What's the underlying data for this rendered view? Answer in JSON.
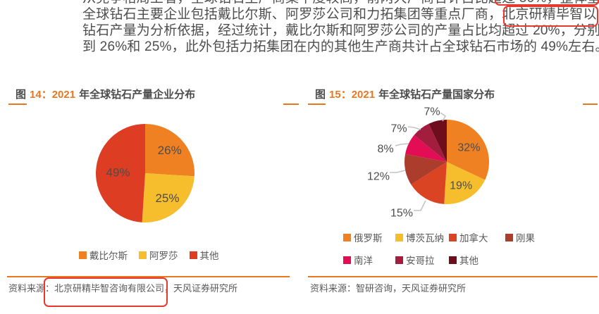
{
  "paragraph": {
    "clipped_line": "从竞争格局上看，全球钻石生产商集中度较高，前两大厂商合计占比超过 50%，整体呈寡头格局",
    "lines": [
      "全球钻石主要企业包括戴比尔斯、阿罗莎公司和力拓集团等重点厂商，北京研精毕智以",
      "钻石产量为分析依据，经过统计，戴比尔斯和阿罗莎公司的产量占比均超过 20%，分别达",
      "到 26%和 25%，此外包括力拓集团在内的其他生产商共计占全球钻石市场的 49%左右。"
    ],
    "highlighted_text": "北京研精毕智"
  },
  "figures": [
    {
      "title_prefix": "图",
      "title_num": "14：2021",
      "title_rest": "年全球钻石产量企业分布",
      "source": "资料来源：北京研精毕智咨询有限公司，天风证券研究所",
      "source_highlighted_text": "北京研精毕智咨询有限公司，"
    },
    {
      "title_prefix": "图",
      "title_num": "15：2021",
      "title_rest": "年全球钻石产量国家分布",
      "source": "资料来源：智研咨询，天风证券研究所"
    }
  ],
  "chart_data": [
    {
      "type": "pie",
      "title": "2021 年全球钻石产量企业分布",
      "categories": [
        "戴比尔斯",
        "阿罗莎",
        "其他"
      ],
      "values": [
        26,
        25,
        49
      ],
      "labels": [
        "26%",
        "25%",
        "49%"
      ],
      "colors": [
        "#EF8123",
        "#F6BE2C",
        "#DC3D23"
      ],
      "start_angle": "12-oclock",
      "direction": "clockwise",
      "legend_position": "bottom"
    },
    {
      "type": "pie",
      "title": "2021 年全球钻石产量国家分布",
      "categories": [
        "俄罗斯",
        "博茨瓦纳",
        "加拿大",
        "刚果",
        "南洋",
        "安哥拉",
        "其他"
      ],
      "values": [
        32,
        19,
        15,
        12,
        8,
        7,
        7
      ],
      "labels": [
        "32%",
        "19%",
        "15%",
        "12%",
        "8%",
        "7%",
        "7%"
      ],
      "colors": [
        "#EF8123",
        "#F6BE2C",
        "#DB4423",
        "#AC3C2B",
        "#E30D56",
        "#A21D3E",
        "#6E0D1B"
      ],
      "start_angle": "12-oclock",
      "direction": "clockwise",
      "legend_position": "bottom"
    }
  ],
  "colors": {
    "accent_orange": "#e87722",
    "annotation_red": "#e8372c",
    "body_text": "#4d4d4d",
    "label_text": "#4d4d4d",
    "legend_text": "#595959",
    "leader_line": "#c3c3c3"
  }
}
